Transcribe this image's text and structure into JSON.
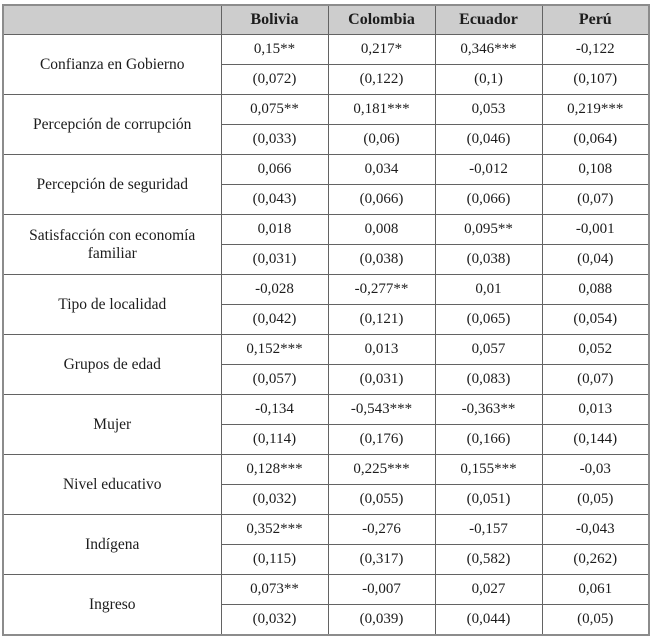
{
  "table": {
    "columns": [
      "",
      "Bolivia",
      "Colombia",
      "Ecuador",
      "Perú"
    ],
    "rows": [
      {
        "label": "Confianza en Gobierno",
        "coef": [
          "0,15**",
          "0,217*",
          "0,346***",
          "-0,122"
        ],
        "se": [
          "(0,072)",
          "(0,122)",
          "(0,1)",
          "(0,107)"
        ]
      },
      {
        "label": "Percepción de corrupción",
        "coef": [
          "0,075**",
          "0,181***",
          "0,053",
          "0,219***"
        ],
        "se": [
          "(0,033)",
          "(0,06)",
          "(0,046)",
          "(0,064)"
        ]
      },
      {
        "label": "Percepción de seguridad",
        "coef": [
          "0,066",
          "0,034",
          "-0,012",
          "0,108"
        ],
        "se": [
          "(0,043)",
          "(0,066)",
          "(0,066)",
          "(0,07)"
        ]
      },
      {
        "label": "Satisfacción con economía familiar",
        "coef": [
          "0,018",
          "0,008",
          "0,095**",
          "-0,001"
        ],
        "se": [
          "(0,031)",
          "(0,038)",
          "(0,038)",
          "(0,04)"
        ]
      },
      {
        "label": "Tipo de localidad",
        "coef": [
          "-0,028",
          "-0,277**",
          "0,01",
          "0,088"
        ],
        "se": [
          "(0,042)",
          "(0,121)",
          "(0,065)",
          "(0,054)"
        ]
      },
      {
        "label": "Grupos de edad",
        "coef": [
          "0,152***",
          "0,013",
          "0,057",
          "0,052"
        ],
        "se": [
          "(0,057)",
          "(0,031)",
          "(0,083)",
          "(0,07)"
        ]
      },
      {
        "label": "Mujer",
        "coef": [
          "-0,134",
          "-0,543***",
          "-0,363**",
          "0,013"
        ],
        "se": [
          "(0,114)",
          "(0,176)",
          "(0,166)",
          "(0,144)"
        ]
      },
      {
        "label": "Nivel educativo",
        "coef": [
          "0,128***",
          "0,225***",
          "0,155***",
          "-0,03"
        ],
        "se": [
          "(0,032)",
          "(0,055)",
          "(0,051)",
          "(0,05)"
        ]
      },
      {
        "label": "Indígena",
        "coef": [
          "0,352***",
          "-0,276",
          "-0,157",
          "-0,043"
        ],
        "se": [
          "(0,115)",
          "(0,317)",
          "(0,582)",
          "(0,262)"
        ]
      },
      {
        "label": "Ingreso",
        "coef": [
          "0,073**",
          "-0,007",
          "0,027",
          "0,061"
        ],
        "se": [
          "(0,032)",
          "(0,039)",
          "(0,044)",
          "(0,05)"
        ]
      }
    ],
    "colors": {
      "header_bg": "#cdcdcd",
      "outer_border": "#8c8c8c",
      "inner_border": "#636363",
      "text": "#1c1c1c"
    }
  }
}
